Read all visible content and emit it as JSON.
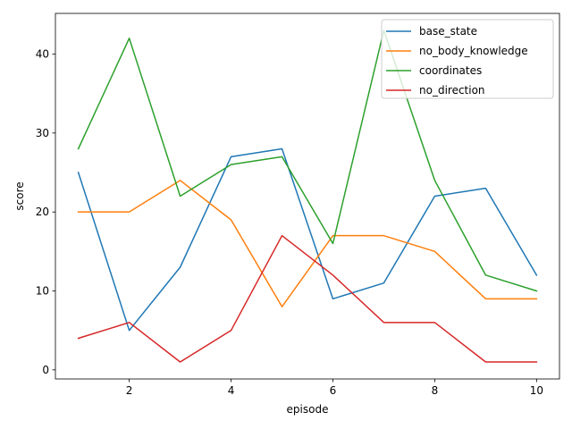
{
  "chart_data": {
    "type": "line",
    "title": "",
    "xlabel": "episode",
    "ylabel": "score",
    "x": [
      1,
      2,
      3,
      4,
      5,
      6,
      7,
      8,
      9,
      10
    ],
    "xlim": [
      0.55,
      10.45
    ],
    "ylim": [
      -1.15,
      45.15
    ],
    "xticks": [
      2,
      4,
      6,
      8,
      10
    ],
    "yticks": [
      0,
      10,
      20,
      30,
      40
    ],
    "grid": false,
    "legend": "top-right",
    "series": [
      {
        "name": "base_state",
        "color": "#1f77b4",
        "values": [
          25,
          5,
          13,
          27,
          28,
          9,
          11,
          22,
          23,
          12
        ]
      },
      {
        "name": "no_body_knowledge",
        "color": "#ff7f0e",
        "values": [
          20,
          20,
          24,
          19,
          8,
          17,
          17,
          15,
          9,
          9
        ]
      },
      {
        "name": "coordinates",
        "color": "#2ca02c",
        "values": [
          28,
          42,
          22,
          26,
          27,
          16,
          43,
          24,
          12,
          10
        ]
      },
      {
        "name": "no_direction",
        "color": "#d62728",
        "values": [
          4,
          6,
          1,
          5,
          17,
          12,
          6,
          6,
          1,
          1
        ]
      }
    ]
  }
}
